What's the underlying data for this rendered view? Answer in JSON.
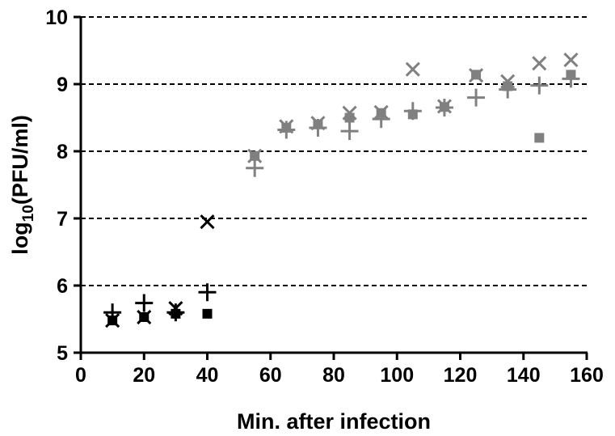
{
  "chart_data": {
    "type": "scatter",
    "xlabel": "Min. after infection",
    "ylabel": {
      "base": "log",
      "subscript": "10",
      "rest": "(PFU/ml)"
    },
    "xlim": [
      0,
      160
    ],
    "ylim": [
      5,
      10
    ],
    "xticks": [
      "0",
      "20",
      "40",
      "60",
      "80",
      "100",
      "120",
      "140",
      "160"
    ],
    "yticks": [
      "5",
      "6",
      "7",
      "8",
      "9",
      "10"
    ],
    "grid": "horizontal dashed",
    "series": [
      {
        "marker": "plus",
        "points": [
          {
            "x": 10,
            "y": 5.6,
            "color": "#000000"
          },
          {
            "x": 20,
            "y": 5.74,
            "color": "#000000"
          },
          {
            "x": 30,
            "y": 5.6,
            "color": "#000000"
          },
          {
            "x": 40,
            "y": 5.9,
            "color": "#000000"
          },
          {
            "x": 55,
            "y": 7.75,
            "color": "#808080"
          },
          {
            "x": 65,
            "y": 8.32,
            "color": "#808080"
          },
          {
            "x": 75,
            "y": 8.35,
            "color": "#808080"
          },
          {
            "x": 85,
            "y": 8.3,
            "color": "#808080"
          },
          {
            "x": 95,
            "y": 8.48,
            "color": "#808080"
          },
          {
            "x": 105,
            "y": 8.6,
            "color": "#808080"
          },
          {
            "x": 115,
            "y": 8.65,
            "color": "#808080"
          },
          {
            "x": 125,
            "y": 8.8,
            "color": "#808080"
          },
          {
            "x": 135,
            "y": 8.92,
            "color": "#808080"
          },
          {
            "x": 145,
            "y": 8.98,
            "color": "#808080"
          },
          {
            "x": 155,
            "y": 9.08,
            "color": "#808080"
          }
        ]
      },
      {
        "marker": "x",
        "points": [
          {
            "x": 10,
            "y": 5.48,
            "color": "#000000"
          },
          {
            "x": 20,
            "y": 5.53,
            "color": "#000000"
          },
          {
            "x": 30,
            "y": 5.66,
            "color": "#000000"
          },
          {
            "x": 40,
            "y": 6.95,
            "color": "#000000"
          },
          {
            "x": 55,
            "y": 7.93,
            "color": "#808080"
          },
          {
            "x": 65,
            "y": 8.37,
            "color": "#808080"
          },
          {
            "x": 75,
            "y": 8.42,
            "color": "#808080"
          },
          {
            "x": 85,
            "y": 8.57,
            "color": "#808080"
          },
          {
            "x": 95,
            "y": 8.58,
            "color": "#808080"
          },
          {
            "x": 105,
            "y": 9.22,
            "color": "#808080"
          },
          {
            "x": 115,
            "y": 8.67,
            "color": "#808080"
          },
          {
            "x": 125,
            "y": 9.13,
            "color": "#808080"
          },
          {
            "x": 135,
            "y": 9.04,
            "color": "#808080"
          },
          {
            "x": 145,
            "y": 9.31,
            "color": "#808080"
          },
          {
            "x": 155,
            "y": 9.36,
            "color": "#808080"
          }
        ]
      },
      {
        "marker": "square",
        "points": [
          {
            "x": 10,
            "y": 5.48,
            "color": "#000000"
          },
          {
            "x": 20,
            "y": 5.53,
            "color": "#000000"
          },
          {
            "x": 30,
            "y": 5.58,
            "color": "#000000"
          },
          {
            "x": 40,
            "y": 5.58,
            "color": "#000000"
          },
          {
            "x": 55,
            "y": 7.93,
            "color": "#808080"
          },
          {
            "x": 65,
            "y": 8.35,
            "color": "#808080"
          },
          {
            "x": 75,
            "y": 8.4,
            "color": "#808080"
          },
          {
            "x": 85,
            "y": 8.5,
            "color": "#808080"
          },
          {
            "x": 95,
            "y": 8.57,
            "color": "#808080"
          },
          {
            "x": 105,
            "y": 8.55,
            "color": "#808080"
          },
          {
            "x": 115,
            "y": 8.66,
            "color": "#808080"
          },
          {
            "x": 125,
            "y": 9.14,
            "color": "#808080"
          },
          {
            "x": 135,
            "y": 8.97,
            "color": "#808080"
          },
          {
            "x": 145,
            "y": 8.2,
            "color": "#808080"
          },
          {
            "x": 155,
            "y": 9.14,
            "color": "#808080"
          }
        ]
      }
    ]
  }
}
